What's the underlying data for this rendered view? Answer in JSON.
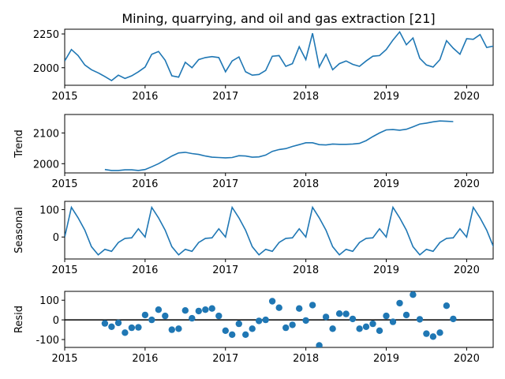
{
  "title": "Mining, quarrying, and oil and gas extraction  [21]",
  "chart_data": [
    {
      "type": "line",
      "panel": "observed",
      "ylabel": "",
      "xlim": [
        2015.0,
        2020.33
      ],
      "ylim": [
        1870,
        2285
      ],
      "yticks": [
        2000,
        2250
      ],
      "xticks": [
        2015,
        2016,
        2017,
        2018,
        2019,
        2020
      ],
      "color": "#1f77b4",
      "x": [
        2015.0,
        2015.083,
        2015.167,
        2015.25,
        2015.333,
        2015.417,
        2015.5,
        2015.583,
        2015.667,
        2015.75,
        2015.833,
        2015.917,
        2016.0,
        2016.083,
        2016.167,
        2016.25,
        2016.333,
        2016.417,
        2016.5,
        2016.583,
        2016.667,
        2016.75,
        2016.833,
        2016.917,
        2017.0,
        2017.083,
        2017.167,
        2017.25,
        2017.333,
        2017.417,
        2017.5,
        2017.583,
        2017.667,
        2017.75,
        2017.833,
        2017.917,
        2018.0,
        2018.083,
        2018.167,
        2018.25,
        2018.333,
        2018.417,
        2018.5,
        2018.583,
        2018.667,
        2018.75,
        2018.833,
        2018.917,
        2019.0,
        2019.083,
        2019.167,
        2019.25,
        2019.333,
        2019.417,
        2019.5,
        2019.583,
        2019.667,
        2019.75,
        2019.833,
        2019.917,
        2020.0,
        2020.083,
        2020.167,
        2020.25,
        2020.333
      ],
      "y": [
        2050,
        2135,
        2090,
        2020,
        1985,
        1962,
        1935,
        1905,
        1945,
        1920,
        1940,
        1970,
        2005,
        2100,
        2120,
        2055,
        1940,
        1930,
        2040,
        2000,
        2060,
        2075,
        2082,
        2075,
        1970,
        2050,
        2080,
        1970,
        1945,
        1950,
        1980,
        2085,
        2090,
        2010,
        2030,
        2155,
        2060,
        2255,
        2005,
        2100,
        1985,
        2030,
        2050,
        2025,
        2010,
        2050,
        2085,
        2090,
        2135,
        2205,
        2265,
        2170,
        2220,
        2070,
        2020,
        2005,
        2060,
        2200,
        2145,
        2100,
        2215,
        2210,
        2245,
        2150,
        2160
      ]
    },
    {
      "type": "line",
      "panel": "trend",
      "ylabel": "Trend",
      "xlim": [
        2015.0,
        2020.33
      ],
      "ylim": [
        1970,
        2160
      ],
      "yticks": [
        2000,
        2100
      ],
      "xticks": [
        2015,
        2016,
        2017,
        2018,
        2019,
        2020
      ],
      "color": "#1f77b4",
      "x": [
        2015.5,
        2015.583,
        2015.667,
        2015.75,
        2015.833,
        2015.917,
        2016.0,
        2016.083,
        2016.167,
        2016.25,
        2016.333,
        2016.417,
        2016.5,
        2016.583,
        2016.667,
        2016.75,
        2016.833,
        2016.917,
        2017.0,
        2017.083,
        2017.167,
        2017.25,
        2017.333,
        2017.417,
        2017.5,
        2017.583,
        2017.667,
        2017.75,
        2017.833,
        2017.917,
        2018.0,
        2018.083,
        2018.167,
        2018.25,
        2018.333,
        2018.417,
        2018.5,
        2018.583,
        2018.667,
        2018.75,
        2018.833,
        2018.917,
        2019.0,
        2019.083,
        2019.167,
        2019.25,
        2019.333,
        2019.417,
        2019.5,
        2019.583,
        2019.667,
        2019.75,
        2019.833
      ],
      "y": [
        1981,
        1978,
        1978,
        1980,
        1980,
        1978,
        1981,
        1990,
        2000,
        2012,
        2025,
        2035,
        2037,
        2033,
        2030,
        2025,
        2021,
        2020,
        2019,
        2020,
        2026,
        2025,
        2021,
        2022,
        2028,
        2040,
        2046,
        2049,
        2056,
        2062,
        2068,
        2068,
        2062,
        2061,
        2064,
        2063,
        2063,
        2064,
        2066,
        2075,
        2088,
        2100,
        2110,
        2111,
        2109,
        2112,
        2120,
        2129,
        2132,
        2136,
        2139,
        2138,
        2137
      ]
    },
    {
      "type": "line",
      "panel": "seasonal",
      "ylabel": "Seasonal",
      "xlim": [
        2015.0,
        2020.33
      ],
      "ylim": [
        -80,
        130
      ],
      "yticks": [
        0,
        100
      ],
      "xticks": [
        2015,
        2016,
        2017,
        2018,
        2019,
        2020
      ],
      "color": "#1f77b4",
      "x": [
        2015.0,
        2015.083,
        2015.167,
        2015.25,
        2015.333,
        2015.417,
        2015.5,
        2015.583,
        2015.667,
        2015.75,
        2015.833,
        2015.917,
        2016.0,
        2016.083,
        2016.167,
        2016.25,
        2016.333,
        2016.417,
        2016.5,
        2016.583,
        2016.667,
        2016.75,
        2016.833,
        2016.917,
        2017.0,
        2017.083,
        2017.167,
        2017.25,
        2017.333,
        2017.417,
        2017.5,
        2017.583,
        2017.667,
        2017.75,
        2017.833,
        2017.917,
        2018.0,
        2018.083,
        2018.167,
        2018.25,
        2018.333,
        2018.417,
        2018.5,
        2018.583,
        2018.667,
        2018.75,
        2018.833,
        2018.917,
        2019.0,
        2019.083,
        2019.167,
        2019.25,
        2019.333,
        2019.417,
        2019.5,
        2019.583,
        2019.667,
        2019.75,
        2019.833,
        2019.917,
        2020.0,
        2020.083,
        2020.167,
        2020.25,
        2020.333
      ],
      "y": [
        0,
        108,
        70,
        25,
        -35,
        -65,
        -45,
        -52,
        -20,
        -5,
        -3,
        30,
        0,
        108,
        70,
        25,
        -35,
        -65,
        -45,
        -52,
        -20,
        -5,
        -3,
        30,
        0,
        108,
        70,
        25,
        -35,
        -65,
        -45,
        -52,
        -20,
        -5,
        -3,
        30,
        0,
        108,
        70,
        25,
        -35,
        -65,
        -45,
        -52,
        -20,
        -5,
        -3,
        30,
        0,
        108,
        70,
        25,
        -35,
        -65,
        -45,
        -52,
        -20,
        -5,
        -3,
        30,
        0,
        108,
        70,
        25,
        -35
      ]
    },
    {
      "type": "scatter",
      "panel": "resid",
      "ylabel": "Resid",
      "xlim": [
        2015.0,
        2020.33
      ],
      "ylim": [
        -140,
        145
      ],
      "yticks": [
        -100,
        0,
        100
      ],
      "xticks": [
        2015,
        2016,
        2017,
        2018,
        2019,
        2020
      ],
      "color": "#1f77b4",
      "zero_line": true,
      "x": [
        2015.5,
        2015.583,
        2015.667,
        2015.75,
        2015.833,
        2015.917,
        2016.0,
        2016.083,
        2016.167,
        2016.25,
        2016.333,
        2016.417,
        2016.5,
        2016.583,
        2016.667,
        2016.75,
        2016.833,
        2016.917,
        2017.0,
        2017.083,
        2017.167,
        2017.25,
        2017.333,
        2017.417,
        2017.5,
        2017.583,
        2017.667,
        2017.75,
        2017.833,
        2017.917,
        2018.0,
        2018.083,
        2018.167,
        2018.25,
        2018.333,
        2018.417,
        2018.5,
        2018.583,
        2018.667,
        2018.75,
        2018.833,
        2018.917,
        2019.0,
        2019.083,
        2019.167,
        2019.25,
        2019.333,
        2019.417,
        2019.5,
        2019.583,
        2019.667,
        2019.75,
        2019.833
      ],
      "y": [
        -18,
        -35,
        -15,
        -65,
        -40,
        -38,
        25,
        0,
        52,
        20,
        -50,
        -45,
        48,
        8,
        45,
        52,
        58,
        20,
        -55,
        -75,
        -20,
        -75,
        -45,
        -5,
        0,
        95,
        62,
        -40,
        -25,
        58,
        -3,
        75,
        -130,
        15,
        -45,
        32,
        30,
        5,
        -45,
        -35,
        -20,
        -55,
        20,
        -10,
        85,
        25,
        128,
        3,
        -70,
        -85,
        -65,
        72,
        5
      ]
    }
  ]
}
